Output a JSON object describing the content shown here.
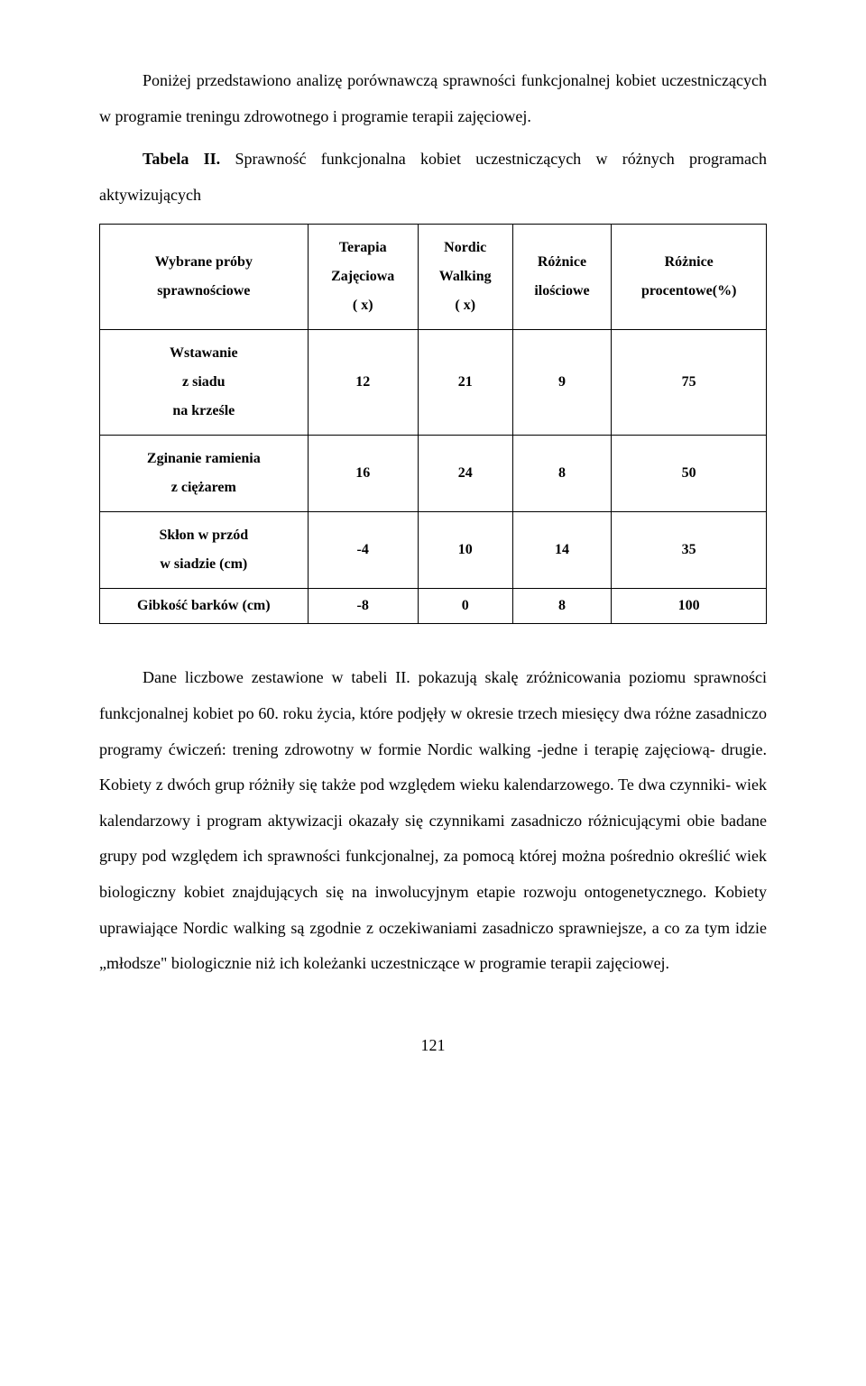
{
  "intro_para": "Poniżej przedstawiono analizę porównawczą sprawności funkcjonalnej kobiet uczestniczących w programie treningu zdrowotnego i programie terapii zajęciowej.",
  "table_caption_prefix": "Tabela II.",
  "table_caption_text": " Sprawność funkcjonalna kobiet uczestniczących w różnych programach aktywizujących",
  "table": {
    "header": {
      "col0_line1": "Wybrane próby",
      "col0_line2": "sprawnościowe",
      "col1_line1": "Terapia",
      "col1_line2": "Zajęciowa",
      "col1_line3": "( x)",
      "col2_line1": "Nordic",
      "col2_line2": "Walking",
      "col2_line3": "( x)",
      "col3_line1": "Różnice",
      "col3_line2": "ilościowe",
      "col4_line1": "Różnice",
      "col4_line2": "procentowe(%)"
    },
    "rows": [
      {
        "label_line1": "Wstawanie",
        "label_line2": "z siadu",
        "label_line3": "na krześle",
        "v1": "12",
        "v2": "21",
        "v3": "9",
        "v4": "75"
      },
      {
        "label_line1": "Zginanie ramienia",
        "label_line2": "z ciężarem",
        "label_line3": "",
        "v1": "16",
        "v2": "24",
        "v3": "8",
        "v4": "50"
      },
      {
        "label_line1": "Skłon w przód",
        "label_line2": "w siadzie (cm)",
        "label_line3": "",
        "v1": "-4",
        "v2": "10",
        "v3": "14",
        "v4": "35"
      },
      {
        "label_line1": "Gibkość barków (cm)",
        "label_line2": "",
        "label_line3": "",
        "v1": "-8",
        "v2": "0",
        "v3": "8",
        "v4": "100"
      }
    ]
  },
  "body_para": "Dane liczbowe zestawione w tabeli II. pokazują skalę zróżnicowania poziomu sprawności funkcjonalnej kobiet po 60. roku życia, które podjęły w okresie trzech miesięcy dwa różne zasadniczo programy ćwiczeń: trening zdrowotny w formie Nordic walking -jedne i terapię zajęciową- drugie. Kobiety z dwóch grup różniły się także pod względem wieku kalendarzowego. Te dwa czynniki- wiek kalendarzowy i program aktywizacji okazały się czynnikami zasadniczo różnicującymi obie badane grupy pod względem ich sprawności funkcjonalnej, za pomocą której można pośrednio określić wiek biologiczny kobiet znajdujących się na inwolucyjnym etapie rozwoju ontogenetycznego. Kobiety uprawiające Nordic walking są zgodnie z oczekiwaniami zasadniczo sprawniejsze, a co za tym idzie „młodsze\" biologicznie niż ich koleżanki uczestniczące w programie terapii zajęciowej.",
  "page_number": "121"
}
